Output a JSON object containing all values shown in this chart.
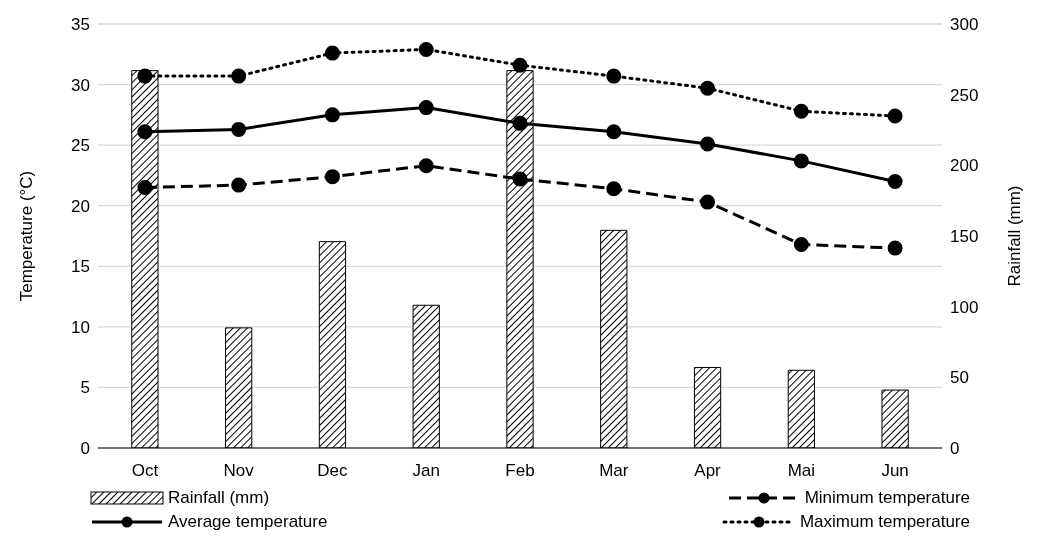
{
  "chart_data": {
    "type": "bar",
    "categories": [
      "Oct",
      "Nov",
      "Dec",
      "Jan",
      "Feb",
      "Mar",
      "Apr",
      "Mai",
      "Jun"
    ],
    "ylabel": "Temperature (°C)",
    "y2label": "Rainfall (mm)",
    "ylim": [
      0,
      35
    ],
    "yticks": [
      0,
      5,
      10,
      15,
      20,
      25,
      30,
      35
    ],
    "y2lim": [
      0,
      300
    ],
    "y2ticks": [
      0,
      50,
      100,
      150,
      200,
      250,
      300
    ],
    "grid": "y",
    "legend": "bottom",
    "marker": "circle",
    "series": [
      {
        "name": "Rainfall (mm)",
        "axis": "y2",
        "color": "#000000",
        "values": [
          267,
          85,
          146,
          101,
          267,
          154,
          57,
          55,
          41
        ]
      },
      {
        "name": "Minimum temperature",
        "type": "line",
        "line_style": "dashed",
        "color": "#000000",
        "values": [
          21.5,
          21.7,
          22.4,
          23.3,
          22.2,
          21.4,
          20.3,
          16.8,
          16.5
        ]
      },
      {
        "name": "Average temperature",
        "type": "line",
        "line_style": "solid",
        "color": "#000000",
        "values": [
          26.1,
          26.3,
          27.5,
          28.1,
          26.8,
          26.1,
          25.1,
          23.7,
          22.0
        ]
      },
      {
        "name": "Maximum temperature",
        "type": "line",
        "line_style": "dotted",
        "color": "#000000",
        "values": [
          30.7,
          30.7,
          32.6,
          32.9,
          31.6,
          30.7,
          29.7,
          27.8,
          27.4
        ]
      }
    ]
  }
}
